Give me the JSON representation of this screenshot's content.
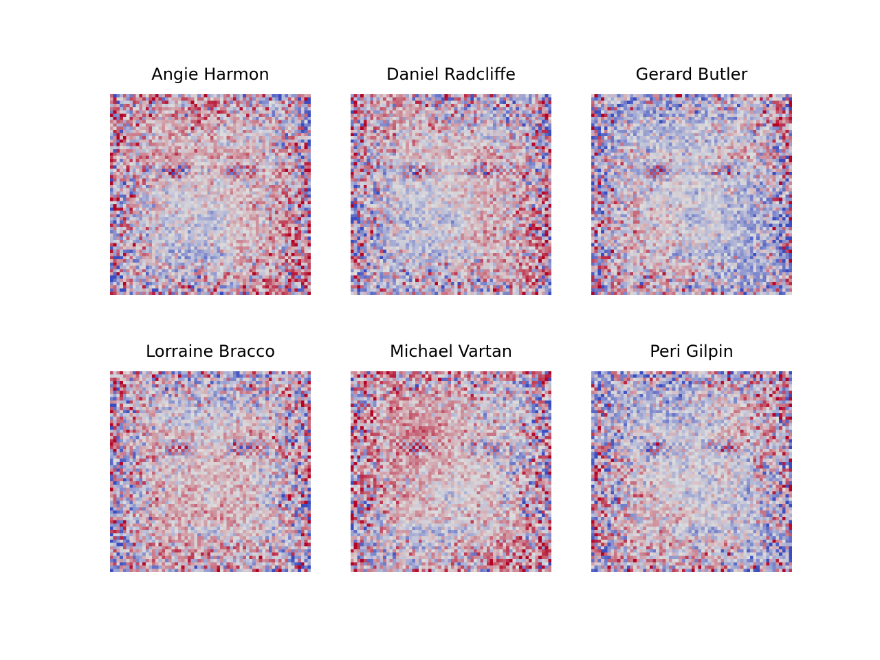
{
  "figure": {
    "colormap": "coolwarm",
    "colormap_low": "#3b4cc0",
    "colormap_mid": "#dddddd",
    "colormap_high": "#b40426"
  },
  "chart_data": [
    {
      "type": "heatmap",
      "title": "Angie Harmon",
      "rows": 62,
      "cols": 62,
      "balance": 0.12,
      "seed": 11
    },
    {
      "type": "heatmap",
      "title": "Daniel Radcliffe",
      "rows": 62,
      "cols": 62,
      "balance": 0.02,
      "seed": 23
    },
    {
      "type": "heatmap",
      "title": "Gerard Butler",
      "rows": 62,
      "cols": 62,
      "balance": -0.15,
      "seed": 37
    },
    {
      "type": "heatmap",
      "title": "Lorraine Bracco",
      "rows": 62,
      "cols": 62,
      "balance": 0.05,
      "seed": 41
    },
    {
      "type": "heatmap",
      "title": "Michael Vartan",
      "rows": 62,
      "cols": 62,
      "balance": 0.15,
      "seed": 53
    },
    {
      "type": "heatmap",
      "title": "Peri Gilpin",
      "rows": 62,
      "cols": 62,
      "balance": -0.05,
      "seed": 67
    }
  ]
}
